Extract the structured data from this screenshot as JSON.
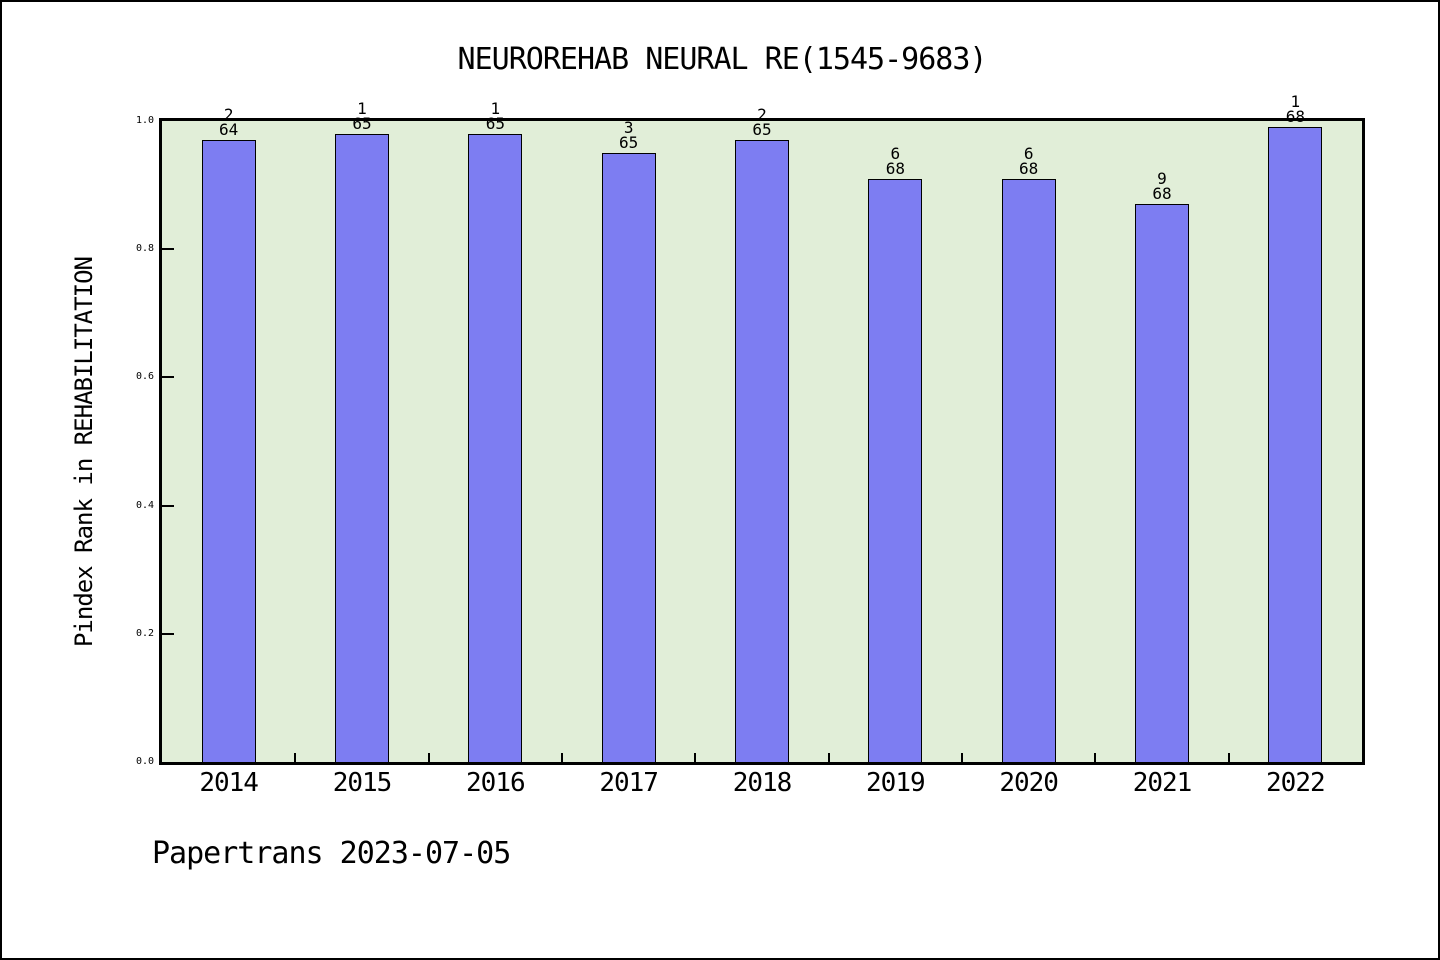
{
  "title": "NEUROREHAB NEURAL RE(1545-9683)",
  "footer": "Papertrans 2023-07-05",
  "chart_data": {
    "type": "bar",
    "title": "NEUROREHAB NEURAL RE(1545-9683)",
    "ylabel": "Pindex Rank in REHABILITATION",
    "xlabel": "",
    "categories": [
      "2014",
      "2015",
      "2016",
      "2017",
      "2018",
      "2019",
      "2020",
      "2021",
      "2022"
    ],
    "values": [
      0.97,
      0.98,
      0.98,
      0.95,
      0.97,
      0.91,
      0.91,
      0.87,
      0.99
    ],
    "bar_labels": [
      {
        "rank": "2",
        "total": "64"
      },
      {
        "rank": "1",
        "total": "65"
      },
      {
        "rank": "1",
        "total": "65"
      },
      {
        "rank": "3",
        "total": "65"
      },
      {
        "rank": "2",
        "total": "65"
      },
      {
        "rank": "6",
        "total": "68"
      },
      {
        "rank": "6",
        "total": "68"
      },
      {
        "rank": "9",
        "total": "68"
      },
      {
        "rank": "1",
        "total": "68"
      }
    ],
    "ylim": [
      0.0,
      1.0
    ],
    "yticks": [
      "0.0",
      "0.2",
      "0.4",
      "0.6",
      "0.8",
      "1.0"
    ],
    "grid": false,
    "legend": false,
    "layout_hints": {
      "tick_direction": "in",
      "minor_xticks_at_slot_boundaries": true
    },
    "colors": {
      "bar_fill": "#7d7df2",
      "bar_border": "#000000",
      "plot_background": "#e1eed8",
      "frame": "#000000",
      "text": "#000000",
      "page_background": "#ffffff"
    }
  }
}
